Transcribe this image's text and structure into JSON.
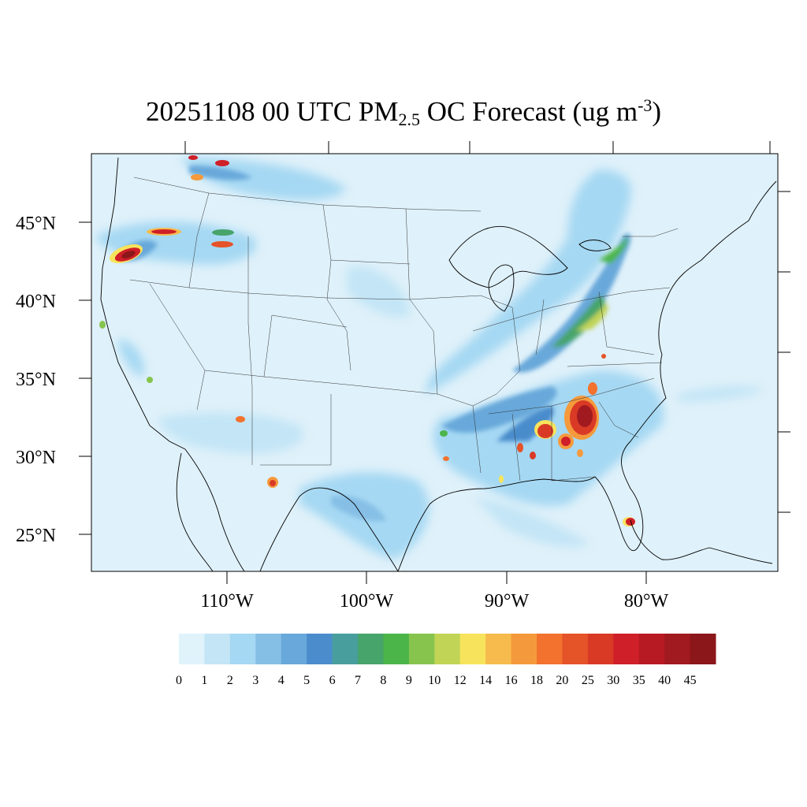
{
  "title": {
    "date": "20251108",
    "hour": "00 UTC",
    "species_main": "PM",
    "species_sub": "2.5",
    "species_rest": "OC Forecast",
    "units_main": "(ug m",
    "units_sup": "-3",
    "units_end": ")"
  },
  "map": {
    "lat_labels": [
      "45°N",
      "40°N",
      "35°N",
      "30°N",
      "25°N"
    ],
    "lon_labels": [
      "110°W",
      "100°W",
      "90°W",
      "80°W"
    ],
    "background_color": "#dff1fa"
  },
  "colorbar": {
    "labels": [
      "0",
      "1",
      "2",
      "3",
      "4",
      "5",
      "6",
      "7",
      "8",
      "9",
      "10",
      "12",
      "14",
      "16",
      "18",
      "20",
      "25",
      "30",
      "35",
      "40",
      "45"
    ],
    "colors": [
      "#e0f3fb",
      "#c3e5f6",
      "#a5d8f3",
      "#86bfe6",
      "#68a8da",
      "#4a8ccc",
      "#489e9d",
      "#47a46a",
      "#4bb54a",
      "#86c44e",
      "#c1d456",
      "#f7e45c",
      "#f6bb4c",
      "#f59a3c",
      "#f2722e",
      "#e55329",
      "#d93a26",
      "#cf1f28",
      "#b71a23",
      "#a11a1f",
      "#8b171a"
    ]
  }
}
